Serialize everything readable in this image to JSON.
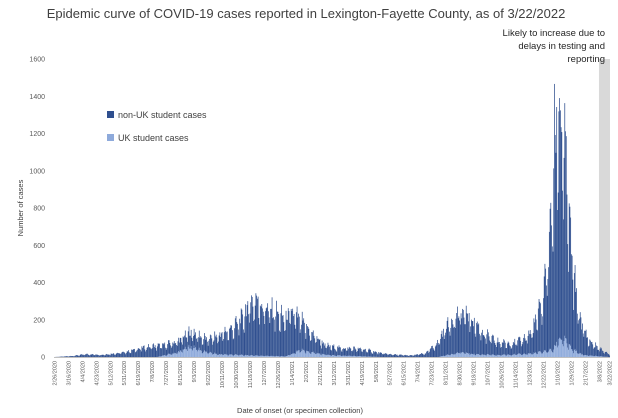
{
  "chart_data": {
    "type": "bar",
    "stacked": true,
    "title": "Epidemic curve of COVID-19 cases reported in Lexington-Fayette County, as of 3/22/2022",
    "xlabel": "Date of onset (or specimen collection)",
    "ylabel": "Number of cases",
    "ylim": [
      0,
      1600
    ],
    "yticks": [
      0,
      200,
      400,
      600,
      800,
      1000,
      1200,
      1400,
      1600
    ],
    "grid": false,
    "legend_position": "upper-left inside plot",
    "x_start_date": "2/26/2020",
    "x_end_date": "3/22/2022",
    "xtick_labels": [
      "2/26/2020",
      "3/16/2020",
      "4/4/2020",
      "4/23/2020",
      "5/12/2020",
      "5/31/2020",
      "6/19/2020",
      "7/8/2020",
      "7/27/2020",
      "8/15/2020",
      "9/3/2020",
      "9/22/2020",
      "10/11/2020",
      "10/30/2020",
      "11/18/2020",
      "12/7/2020",
      "12/26/2020",
      "1/14/2021",
      "2/2/2021",
      "2/21/2021",
      "3/12/2021",
      "3/31/2021",
      "4/19/2021",
      "5/8/2021",
      "5/27/2021",
      "6/15/2021",
      "7/4/2021",
      "7/23/2021",
      "8/11/2021",
      "8/30/2021",
      "9/18/2021",
      "10/7/2021",
      "10/26/2021",
      "11/14/2021",
      "12/3/2021",
      "12/22/2021",
      "1/10/2022",
      "1/29/2022",
      "2/17/2022",
      "3/8/2022",
      "3/22/2022"
    ],
    "series": [
      {
        "name": "non-UK student cases",
        "color": "#2f4f8f",
        "points": [
          [
            "2/26/2020",
            0
          ],
          [
            "3/20/2020",
            5
          ],
          [
            "4/10/2020",
            15
          ],
          [
            "5/1/2020",
            12
          ],
          [
            "6/1/2020",
            25
          ],
          [
            "6/20/2020",
            45
          ],
          [
            "7/10/2020",
            60
          ],
          [
            "7/25/2020",
            55
          ],
          [
            "8/15/2020",
            60
          ],
          [
            "8/28/2020",
            80
          ],
          [
            "9/5/2020",
            75
          ],
          [
            "9/22/2020",
            70
          ],
          [
            "10/11/2020",
            110
          ],
          [
            "10/25/2020",
            140
          ],
          [
            "11/8/2020",
            200
          ],
          [
            "11/18/2020",
            280
          ],
          [
            "11/28/2020",
            300
          ],
          [
            "12/7/2020",
            260
          ],
          [
            "12/20/2020",
            240
          ],
          [
            "1/3/2021",
            200
          ],
          [
            "1/14/2021",
            220
          ],
          [
            "1/25/2021",
            160
          ],
          [
            "2/10/2021",
            100
          ],
          [
            "3/1/2021",
            50
          ],
          [
            "3/20/2021",
            40
          ],
          [
            "4/10/2021",
            40
          ],
          [
            "4/25/2021",
            35
          ],
          [
            "5/15/2021",
            20
          ],
          [
            "6/5/2021",
            12
          ],
          [
            "6/25/2021",
            8
          ],
          [
            "7/15/2021",
            20
          ],
          [
            "7/30/2021",
            70
          ],
          [
            "8/11/2021",
            150
          ],
          [
            "8/25/2021",
            200
          ],
          [
            "9/8/2021",
            210
          ],
          [
            "9/20/2021",
            170
          ],
          [
            "10/2/2021",
            110
          ],
          [
            "10/20/2021",
            70
          ],
          [
            "11/5/2021",
            60
          ],
          [
            "11/20/2021",
            70
          ],
          [
            "12/5/2021",
            110
          ],
          [
            "12/20/2021",
            250
          ],
          [
            "12/31/2021",
            600
          ],
          [
            "1/6/2022",
            1050
          ],
          [
            "1/12/2022",
            1260
          ],
          [
            "1/18/2022",
            1100
          ],
          [
            "1/26/2022",
            650
          ],
          [
            "2/4/2022",
            300
          ],
          [
            "2/12/2022",
            160
          ],
          [
            "2/22/2022",
            80
          ],
          [
            "3/8/2022",
            40
          ],
          [
            "3/22/2022",
            15
          ]
        ]
      },
      {
        "name": "UK student cases",
        "color": "#8eaadb",
        "points": [
          [
            "2/26/2020",
            0
          ],
          [
            "7/15/2020",
            0
          ],
          [
            "8/12/2020",
            25
          ],
          [
            "8/25/2020",
            50
          ],
          [
            "9/2/2020",
            55
          ],
          [
            "9/15/2020",
            30
          ],
          [
            "10/5/2020",
            15
          ],
          [
            "11/10/2020",
            10
          ],
          [
            "12/20/2020",
            5
          ],
          [
            "1/5/2021",
            3
          ],
          [
            "1/14/2021",
            15
          ],
          [
            "1/25/2021",
            35
          ],
          [
            "2/10/2021",
            25
          ],
          [
            "3/5/2021",
            10
          ],
          [
            "4/10/2021",
            5
          ],
          [
            "5/15/2021",
            0
          ],
          [
            "8/1/2021",
            0
          ],
          [
            "8/18/2021",
            15
          ],
          [
            "9/1/2021",
            25
          ],
          [
            "9/20/2021",
            15
          ],
          [
            "10/20/2021",
            10
          ],
          [
            "11/20/2021",
            15
          ],
          [
            "12/10/2021",
            20
          ],
          [
            "1/5/2022",
            40
          ],
          [
            "1/12/2022",
            100
          ],
          [
            "1/20/2022",
            90
          ],
          [
            "1/30/2022",
            40
          ],
          [
            "2/15/2022",
            10
          ],
          [
            "3/22/2022",
            0
          ]
        ]
      }
    ],
    "annotations": [
      {
        "text_lines": [
          "Likely to increase due to",
          "delays in testing and",
          "reporting"
        ],
        "shaded_from": "3/8/2022",
        "shaded_to": "3/22/2022",
        "shade_color": "#d9d9d9"
      }
    ]
  }
}
